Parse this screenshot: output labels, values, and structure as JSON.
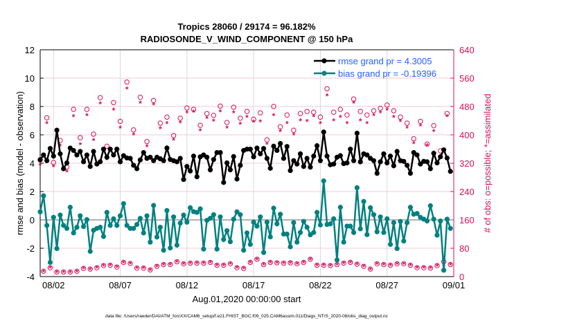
{
  "chart_data": {
    "type": "line",
    "title": "Tropics 28060 / 29174 = 96.182%",
    "subtitle": "RADIOSONDE_V_WIND_COMPONENT @ 150 hPa",
    "xlabel": "Aug.01,2020 00:00:00 start",
    "ylabel": "rmse and bias (model - observation)",
    "ylabel_right": "# of obs: o=possible; *=assimilated",
    "footer": "data file: /Users/raeder/DAI/ATM_forcXX/CAM6_setup/f.e21.FHIST_BGC.f09_025.CAM6assim.011/Diags_NTrS_2020-08/obs_diag_output.nc",
    "xlim_days": [
      0,
      31
    ],
    "x_step_days": 0.25,
    "ylim": [
      -4,
      12
    ],
    "yticks": [
      "-4",
      "-2",
      "0",
      "2",
      "4",
      "6",
      "8",
      "10",
      "12"
    ],
    "ylim_right": [
      0,
      640
    ],
    "yticks_right": [
      "0",
      "80",
      "160",
      "240",
      "320",
      "400",
      "480",
      "560",
      "640"
    ],
    "xticks": [
      {
        "day": 1,
        "label": "08/02"
      },
      {
        "day": 6,
        "label": "08/07"
      },
      {
        "day": 11,
        "label": "08/12"
      },
      {
        "day": 16,
        "label": "08/17"
      },
      {
        "day": 21,
        "label": "08/22"
      },
      {
        "day": 26,
        "label": "08/27"
      },
      {
        "day": 31,
        "label": "09/01"
      }
    ],
    "legend_position": "top-right",
    "series": [
      {
        "name": "rmse grand pr = 4.3005",
        "color": "#000000",
        "values": [
          4.23,
          4.58,
          4.18,
          5.04,
          4.5,
          6.33,
          4.66,
          3.61,
          4.02,
          5.07,
          4.9,
          4.58,
          4.83,
          4.1,
          4.58,
          3.77,
          4.83,
          3.94,
          4.1,
          4.99,
          4.42,
          4.99,
          4.58,
          4.99,
          4.1,
          4.53,
          4.37,
          4.34,
          3.85,
          3.61,
          4.23,
          4.75,
          4.34,
          4.42,
          4.18,
          4.42,
          4.31,
          4.18,
          5.07,
          4.26,
          4.18,
          4.1,
          4.34,
          2.85,
          3.77,
          3.45,
          4.5,
          3.04,
          4.45,
          4.58,
          4.42,
          3.53,
          4.26,
          4.75,
          4.75,
          2.64,
          4.02,
          3.53,
          4.47,
          2.88,
          3.85,
          4.9,
          4.99,
          4.99,
          4.45,
          5.07,
          4.66,
          5.04,
          4.34,
          3.64,
          5.2,
          4.9,
          5.39,
          4.34,
          5.18,
          3.48,
          4.18,
          3.94,
          4.66,
          3.77,
          4.34,
          3.72,
          4.5,
          5.23,
          4.18,
          6.2,
          4.5,
          3.89,
          3.94,
          4.42,
          4.53,
          3.97,
          4.02,
          4.99,
          4.18,
          6.12,
          4.1,
          4.66,
          4.58,
          4.34,
          4.18,
          3.29,
          4.1,
          4.66,
          4.02,
          4.5,
          3.82,
          4.83,
          4.18,
          4.13,
          3.85,
          3.29,
          4.75,
          4.58,
          3.94,
          4.13,
          4.1,
          3.61,
          4.7,
          4.02,
          4.45,
          4.94,
          4.37,
          3.42
        ]
      },
      {
        "name": "bias grand pr = -0.19396",
        "color": "#008080",
        "values": [
          0.57,
          1.7,
          -0.39,
          -3.0,
          0.18,
          -2.02,
          0.34,
          -0.39,
          -0.6,
          0.89,
          -0.92,
          -0.52,
          0.29,
          -0.47,
          0.02,
          -2.22,
          -0.73,
          -0.6,
          -0.52,
          -1.17,
          0.53,
          -0.39,
          0.08,
          -0.39,
          0.29,
          1.15,
          -0.39,
          -0.6,
          -0.6,
          -0.32,
          0.11,
          -0.92,
          0.29,
          -1.57,
          1.02,
          -1.21,
          -0.52,
          -2.14,
          0.66,
          -1.98,
          0.21,
          -1.78,
          -0.23,
          0.34,
          -0.16,
          0.86,
          0.58,
          0.53,
          0.78,
          -2.06,
          -0.03,
          0.11,
          0.37,
          -2.06,
          0.21,
          -1.38,
          -0.76,
          -1.54,
          0.05,
          0.57,
          0.37,
          -2.14,
          -0.92,
          -1.73,
          -0.16,
          -0.44,
          0.21,
          -2.3,
          -0.16,
          -1.2,
          0.83,
          -0.28,
          0.4,
          -1.0,
          -1.0,
          -1.9,
          -0.19,
          -1.57,
          -0.89,
          -0.11,
          -0.52,
          -1.05,
          -0.89,
          0.53,
          -0.36,
          2.75,
          -0.32,
          -0.28,
          0.08,
          -2.83,
          0.89,
          -1.57,
          -0.44,
          -0.44,
          -0.89,
          2.27,
          -0.63,
          1.3,
          -1.04,
          0.86,
          0.37,
          -0.84,
          0.21,
          -0.89,
          0.08,
          -1.73,
          -0.19,
          -2.02,
          -0.11,
          -1.49,
          -0.19,
          0.89,
          0.4,
          0.45,
          0.18,
          0.05,
          -0.08,
          1.0,
          0.05,
          -1.08,
          -0.08,
          -3.55,
          0.05,
          -0.6
        ]
      }
    ],
    "obs": {
      "color": "#d4105a",
      "high_possible": [
        330,
        448,
        322,
        384,
        309,
        472,
        392,
        472,
        402,
        505,
        368,
        491,
        438,
        549,
        414,
        506,
        381,
        497,
        433,
        450,
        398,
        447,
        476,
        472,
        427,
        460,
        455,
        481,
        435,
        478,
        447,
        466,
        444,
        462,
        386,
        480,
        423,
        456,
        413,
        460,
        466,
        464,
        450,
        530,
        464,
        472,
        456,
        501,
        466,
        456,
        468,
        475,
        484,
        468,
        450,
        433,
        389,
        438,
        374,
        426,
        355,
        460
      ],
      "high_assimilated": [
        315,
        432,
        310,
        369,
        296,
        452,
        373,
        455,
        384,
        488,
        330,
        470,
        420,
        530,
        400,
        490,
        367,
        485,
        418,
        432,
        385,
        434,
        462,
        464,
        412,
        447,
        439,
        465,
        420,
        462,
        430,
        450,
        436,
        437,
        374,
        455,
        410,
        432,
        400,
        440,
        438,
        452,
        432,
        510,
        440,
        450,
        432,
        490,
        440,
        432,
        455,
        462,
        470,
        450,
        438,
        420,
        376,
        425,
        370,
        410,
        340,
        452
      ],
      "low_possible": [
        15,
        25,
        13,
        13,
        13,
        15,
        23,
        21,
        25,
        31,
        32,
        27,
        40,
        37,
        24,
        24,
        19,
        29,
        34,
        34,
        42,
        36,
        38,
        38,
        38,
        40,
        32,
        32,
        36,
        25,
        23,
        40,
        49,
        34,
        40,
        39,
        38,
        39,
        36,
        40,
        49,
        32,
        32,
        31,
        34,
        38,
        40,
        35,
        29,
        21,
        36,
        34,
        32,
        36,
        36,
        32,
        25,
        25,
        24,
        31,
        42,
        34
      ],
      "low_assimilated": [
        14,
        24,
        12,
        12,
        12,
        14,
        22,
        20,
        24,
        30,
        31,
        26,
        39,
        36,
        23,
        23,
        18,
        28,
        33,
        33,
        41,
        35,
        37,
        37,
        37,
        39,
        31,
        31,
        35,
        24,
        22,
        39,
        48,
        33,
        39,
        38,
        37,
        38,
        35,
        39,
        48,
        31,
        31,
        30,
        33,
        37,
        39,
        34,
        28,
        20,
        35,
        33,
        31,
        35,
        35,
        31,
        24,
        24,
        23,
        30,
        28,
        33
      ]
    }
  }
}
